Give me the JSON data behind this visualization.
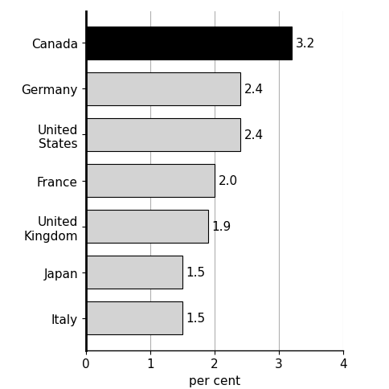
{
  "categories": [
    "Italy",
    "Japan",
    "United\nKingdom",
    "France",
    "United\nStates",
    "Germany",
    "Canada"
  ],
  "values": [
    1.5,
    1.5,
    1.9,
    2.0,
    2.4,
    2.4,
    3.2
  ],
  "bar_colors": [
    "#d3d3d3",
    "#d3d3d3",
    "#d3d3d3",
    "#d3d3d3",
    "#d3d3d3",
    "#d3d3d3",
    "#000000"
  ],
  "bar_edgecolors": [
    "#000000",
    "#000000",
    "#000000",
    "#000000",
    "#000000",
    "#000000",
    "#000000"
  ],
  "labels": [
    "1.5",
    "1.5",
    "1.9",
    "2.0",
    "2.4",
    "2.4",
    "3.2"
  ],
  "xlabel": "per cent",
  "xlim": [
    0,
    4
  ],
  "xticks": [
    0,
    1,
    2,
    3,
    4
  ],
  "grid_color": "#b0b0b0",
  "background_color": "#ffffff",
  "bar_height": 0.72,
  "label_fontsize": 11,
  "tick_fontsize": 11,
  "xlabel_fontsize": 11
}
